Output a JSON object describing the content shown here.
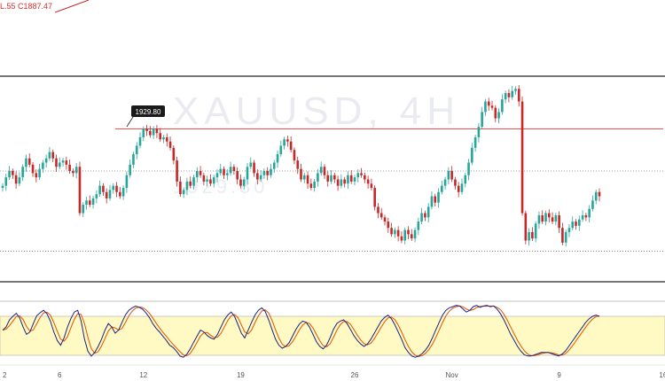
{
  "header": {
    "ohlc_text": "L.55 C1887.47"
  },
  "watermark": {
    "symbol": "XAUUSD, 4H",
    "sub": "1929.80"
  },
  "colors": {
    "up": "#26a69a",
    "down": "#c62828",
    "resistance": "#e53935",
    "osc_fast": "#1a237e",
    "osc_slow": "#e65100",
    "osc_band": "#fff9c4"
  },
  "chart_data": {
    "type": "candlestick",
    "price_range": [
      1855,
      1945
    ],
    "high_label": "1929.80",
    "levels": {
      "resistance": 1920,
      "mid_dotted": 1900,
      "low_dotted": 1862,
      "box_top": 1945,
      "box_bottom": 1838
    },
    "x_tick_labels": [
      {
        "label": "2",
        "index": 0
      },
      {
        "label": "6",
        "index": 17
      },
      {
        "label": "12",
        "index": 42
      },
      {
        "label": "19",
        "index": 71
      },
      {
        "label": "26",
        "index": 105
      },
      {
        "label": "Nov",
        "index": 134
      },
      {
        "label": "9",
        "index": 166
      },
      {
        "label": "16",
        "index": 197
      }
    ],
    "closes": [
      1893,
      1897,
      1900,
      1898,
      1894,
      1897,
      1902,
      1906,
      1903,
      1899,
      1897,
      1901,
      1904,
      1906,
      1909,
      1906,
      1902,
      1904,
      1905,
      1903,
      1900,
      1899,
      1902,
      1880,
      1884,
      1886,
      1884,
      1887,
      1889,
      1893,
      1890,
      1887,
      1891,
      1893,
      1890,
      1888,
      1892,
      1898,
      1903,
      1908,
      1912,
      1916,
      1920,
      1919,
      1917,
      1920,
      1918,
      1915,
      1916,
      1914,
      1911,
      1905,
      1895,
      1889,
      1891,
      1895,
      1893,
      1897,
      1900,
      1898,
      1895,
      1896,
      1894,
      1897,
      1899,
      1901,
      1898,
      1899,
      1902,
      1900,
      1896,
      1893,
      1896,
      1902,
      1904,
      1899,
      1896,
      1898,
      1900,
      1898,
      1901,
      1904,
      1908,
      1912,
      1915,
      1914,
      1910,
      1905,
      1901,
      1896,
      1898,
      1894,
      1892,
      1895,
      1899,
      1902,
      1898,
      1895,
      1898,
      1896,
      1893,
      1896,
      1894,
      1898,
      1895,
      1897,
      1899,
      1898,
      1896,
      1894,
      1892,
      1883,
      1880,
      1878,
      1876,
      1873,
      1870,
      1872,
      1869,
      1867,
      1872,
      1870,
      1868,
      1872,
      1876,
      1880,
      1878,
      1883,
      1888,
      1885,
      1890,
      1893,
      1896,
      1900,
      1896,
      1893,
      1890,
      1894,
      1898,
      1904,
      1911,
      1916,
      1921,
      1928,
      1933,
      1931,
      1930,
      1925,
      1928,
      1934,
      1937,
      1935,
      1938,
      1939,
      1933,
      1880,
      1867,
      1871,
      1868,
      1875,
      1879,
      1876,
      1880,
      1878,
      1876,
      1879,
      1873,
      1866,
      1871,
      1873,
      1876,
      1874,
      1877,
      1879,
      1878,
      1882,
      1886,
      1890,
      1888
    ],
    "oscillator": {
      "range": [
        0,
        100
      ],
      "band": [
        20,
        80
      ],
      "fast": [
        55,
        60,
        72,
        78,
        83,
        75,
        60,
        48,
        52,
        66,
        79,
        84,
        88,
        82,
        70,
        52,
        38,
        30,
        42,
        60,
        74,
        85,
        88,
        70,
        40,
        20,
        12,
        18,
        28,
        40,
        55,
        66,
        60,
        50,
        55,
        68,
        80,
        88,
        92,
        95,
        93,
        90,
        84,
        76,
        66,
        58,
        52,
        45,
        38,
        30,
        26,
        20,
        12,
        10,
        15,
        24,
        35,
        45,
        55,
        52,
        46,
        42,
        40,
        48,
        60,
        72,
        80,
        85,
        78,
        64,
        50,
        42,
        55,
        68,
        80,
        88,
        92,
        86,
        72,
        56,
        40,
        30,
        25,
        28,
        34,
        45,
        56,
        65,
        70,
        68,
        60,
        48,
        36,
        28,
        24,
        30,
        42,
        56,
        66,
        70,
        72,
        66,
        56,
        46,
        38,
        32,
        28,
        32,
        40,
        50,
        60,
        70,
        76,
        80,
        74,
        64,
        52,
        40,
        26,
        18,
        12,
        10,
        12,
        16,
        22,
        30,
        42,
        55,
        68,
        80,
        88,
        92,
        94,
        96,
        95,
        90,
        85,
        88,
        94,
        96,
        93,
        95,
        96,
        94,
        95,
        90,
        82,
        72,
        60,
        48,
        38,
        28,
        20,
        14,
        12,
        12,
        14,
        16,
        18,
        18,
        18,
        16,
        14,
        12,
        15,
        20,
        28,
        36,
        44,
        52,
        60,
        68,
        74,
        78,
        80,
        78
      ]
    }
  }
}
